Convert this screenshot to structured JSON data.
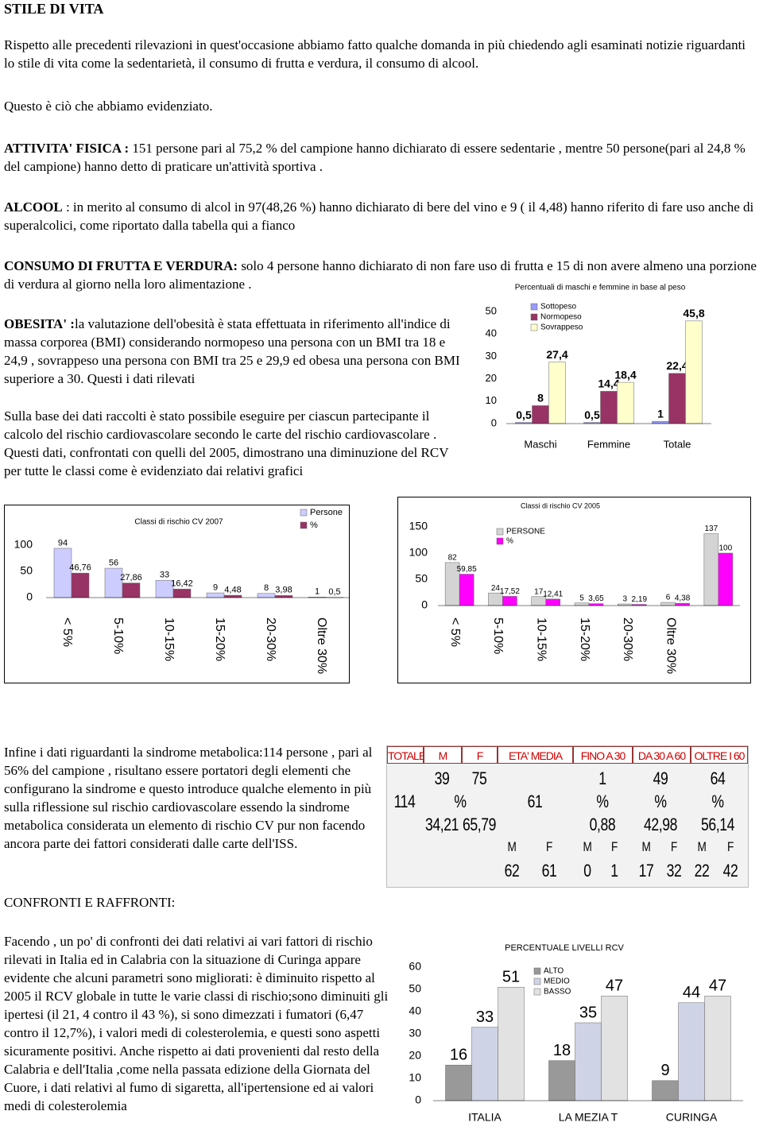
{
  "title": "STILE DI VITA",
  "paragraphs": [
    {
      "text": "Rispetto alle precedenti rilevazioni in quest'occasione abbiamo fatto qualche domanda in più chiedendo agli esaminati notizie riguardanti  lo stile di vita come la sedentarietà, il consumo di frutta e verdura, il consumo di alcool."
    },
    {
      "text": "Questo è ciò che abbiamo evidenziato."
    },
    {
      "lead": "ATTIVITA' FISICA :",
      "text": "151 persone pari al 75,2 % del campione hanno dichiarato di essere sedentarie  , mentre 50 persone(pari al 24,8 % del campione) hanno detto di praticare un'attività sportiva ."
    },
    {
      "lead": "ALCOOL",
      "text": ": in merito al consumo di alcol in 97(48,26 %) hanno dichiarato di bere del vino e 9 ( il 4,48) hanno riferito di fare uso anche di superalcolici, come riportato dalla tabella qui a fianco"
    },
    {
      "lead": "CONSUMO DI FRUTTA E VERDURA:",
      "text": "solo 4 persone hanno dichiarato di non fare uso di frutta e 15 di non avere almeno una porzione di verdura al giorno nella loro alimentazione ."
    },
    {
      "lead": "OBESITA' :",
      "text": "la valutazione dell'obesità è stata effettuata in riferimento all'indice di massa corporea (BMI) considerando normopeso una persona con un BMI tra 18 e 24,9 , sovrappeso una persona con  BMI tra 25 e 29,9 ed obesa una persona con BMI superiore a 30. Questi i dati rilevati"
    },
    {
      "text": "Sulla base  dei dati raccolti è stato possibile  eseguire per ciascun partecipante il calcolo del rischio cardiovascolare secondo le carte del rischio cardiovascolare . Questi dati, confrontati con quelli del 2005, dimostrano una diminuzione del  RCV per tutte le classi come è evidenziato dai relativi grafici"
    },
    {
      "text": "Infine i dati riguardanti la sindrome metabolica:114 persone , pari al 56% del campione , risultano essere portatori degli elementi che configurano la sindrome e questo introduce qualche elemento in più sulla riflessione sul rischio cardiovascolare essendo la sindrome metabolica considerata un elemento di rischio CV pur non facendo ancora parte dei fattori  considerati dalle carte dell'ISS."
    },
    {
      "text": "CONFRONTI E RAFFRONTI:"
    },
    {
      "text": "Facendo , un po' di confronti dei dati  relativi ai vari fattori di rischio rilevati in Italia  ed in Calabria con la situazione di Curinga appare evidente  che alcuni parametri sono migliorati: è diminuito rispetto al 2005 il RCV globale in tutte le varie classi di rischio;sono diminuiti gli ipertesi (il 21, 4 contro il 43 %), si sono dimezzati i fumatori (6,47 contro il 12,7%), i valori medi di colesterolemia, e questi sono aspetti sicuramente positivi. Anche rispetto ai dati provenienti dal resto della Calabria e dell'Italia ,come nella passata edizione della Giornata del Cuore,    i dati relativi  al fumo di sigaretta, all'ipertensione ed ai valori medi di colesterolemia"
    }
  ],
  "chart_data": [
    {
      "type": "bar",
      "title": "Percentuali di maschi e femmine in base al peso",
      "categories": [
        "Maschi",
        "Femmine",
        "Totale"
      ],
      "series": [
        {
          "name": "Sottopeso",
          "color": "#9999ff",
          "values": [
            0.5,
            0.5,
            1
          ],
          "value_labels": [
            "0,5",
            "0,5",
            "1"
          ]
        },
        {
          "name": "Normopeso",
          "color": "#993366",
          "values": [
            8,
            14.4,
            22.4
          ],
          "value_labels": [
            "8",
            "14,4",
            "22,4"
          ]
        },
        {
          "name": "Sovrappeso",
          "color": "#ffffcc",
          "values": [
            27.4,
            18.4,
            45.8
          ],
          "value_labels": [
            "27,4",
            "18,4",
            "45,8"
          ]
        }
      ],
      "ylim": [
        0,
        50
      ],
      "yticks": [
        0,
        10,
        20,
        30,
        40,
        50
      ],
      "grid": false
    },
    {
      "type": "bar",
      "title": "Classi di rischio CV 2007",
      "categories": [
        "< 5%",
        "5-10%",
        "10-15%",
        "15-20%",
        "20-30%",
        "Oltre 30%"
      ],
      "series": [
        {
          "name": "Persone",
          "color": "#ccccff",
          "values": [
            94,
            56,
            33,
            9,
            8,
            1
          ]
        },
        {
          "name": "%",
          "color": "#993366",
          "values": [
            46.76,
            27.86,
            16.42,
            4.48,
            3.98,
            0.5
          ],
          "value_labels": [
            "46,76",
            "27,86",
            "16,42",
            "4,48",
            "3,98",
            "0,5"
          ]
        }
      ],
      "ylim": [
        0,
        100
      ],
      "yticks": [
        0,
        50,
        100
      ],
      "grid": false
    },
    {
      "type": "bar",
      "title": "Classi di rischio CV 2005",
      "categories": [
        "< 5%",
        "5-10%",
        "10-15%",
        "15-20%",
        "20-30%",
        "Oltre 30%",
        null
      ],
      "series": [
        {
          "name": "PERSONE",
          "color": "#d4d4d4",
          "values": [
            82,
            24,
            17,
            5,
            3,
            6,
            137
          ]
        },
        {
          "name": "%",
          "color": "#ff00ff",
          "values": [
            59.85,
            17.52,
            12.41,
            3.65,
            2.19,
            4.38,
            100
          ],
          "value_labels": [
            "59,85",
            "17,52",
            "12,41",
            "3,65",
            "2,19",
            "4,38",
            "100"
          ]
        }
      ],
      "ylim": [
        0,
        150
      ],
      "yticks": [
        0,
        50,
        100,
        150
      ],
      "grid": false
    },
    {
      "type": "bar",
      "title": "PERCENTUALE LIVELLI RCV",
      "categories": [
        "ITALIA",
        "LA MEZIA T",
        "CURINGA"
      ],
      "series": [
        {
          "name": "ALTO",
          "color": "#999999",
          "values": [
            16,
            18,
            9
          ]
        },
        {
          "name": "MEDIO",
          "color": "#cfd3e6",
          "values": [
            33,
            35,
            44
          ]
        },
        {
          "name": "BASSO",
          "color": "#e2e2e2",
          "values": [
            51,
            47,
            47
          ]
        }
      ],
      "ylim": [
        0,
        60
      ],
      "yticks": [
        0,
        10,
        20,
        30,
        40,
        50,
        60
      ],
      "grid": false
    }
  ],
  "table": {
    "header": [
      "TOTALE",
      "M",
      "F",
      "ETA' MEDIA",
      "FINO A 30",
      "DA 30 A 60",
      "OLTRE I 60"
    ],
    "rows": [
      [
        "39",
        "75",
        "1",
        "49",
        "64"
      ],
      [
        "114",
        "%",
        "61",
        "%",
        "%",
        "%"
      ],
      [
        "34,21",
        "65,79",
        "0,88",
        "42,98",
        "56,14"
      ],
      [
        "M",
        "F",
        "M",
        "F",
        "M",
        "F",
        "M",
        "F"
      ],
      [
        "62",
        "61",
        "0",
        "1",
        "17",
        "32",
        "22",
        "42"
      ]
    ]
  }
}
